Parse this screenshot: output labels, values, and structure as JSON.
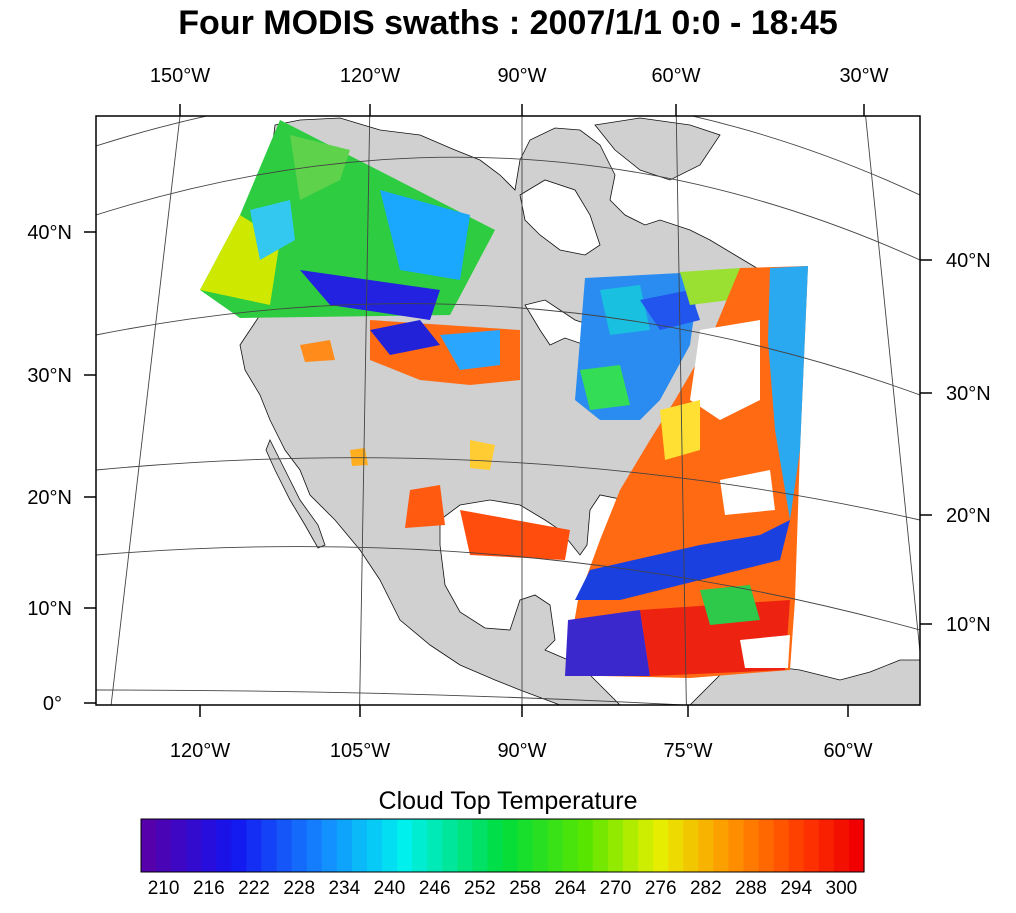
{
  "title": "Four MODIS swaths : 2007/1/1  0:0 - 18:45",
  "top_lon_labels": [
    "150°W",
    "120°W",
    "90°W",
    "60°W",
    "30°W"
  ],
  "bottom_lon_labels": [
    "120°W",
    "105°W",
    "90°W",
    "75°W",
    "60°W"
  ],
  "left_lat_labels": [
    "40°N",
    "30°N",
    "20°N",
    "10°N",
    "0°"
  ],
  "right_lat_labels": [
    "40°N",
    "30°N",
    "20°N",
    "10°N"
  ],
  "colorbar": {
    "title": "Cloud Top Temperature",
    "tick_labels": [
      "210",
      "216",
      "222",
      "228",
      "234",
      "240",
      "246",
      "252",
      "258",
      "264",
      "270",
      "276",
      "282",
      "288",
      "294",
      "300"
    ],
    "min": 207,
    "max": 303
  },
  "colors": {
    "land": "#d0d0d0",
    "ocean": "#ffffff",
    "gridline": "#444444"
  }
}
